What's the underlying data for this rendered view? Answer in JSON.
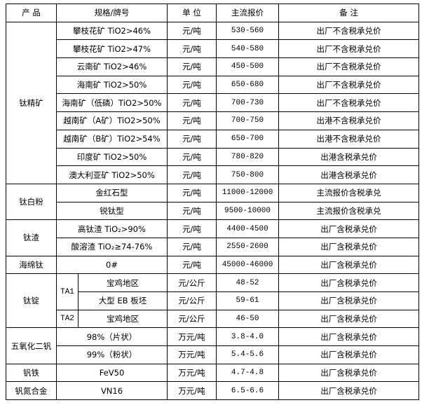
{
  "header": {
    "product": "产  品",
    "spec": "规格/牌号",
    "unit": "单 位",
    "price": "主流报价",
    "note": "备  注"
  },
  "groups": [
    {
      "product": "钛精矿",
      "rows": [
        {
          "spec": "攀枝花矿 TiO2>46%",
          "unit": "元/吨",
          "price": "530-560",
          "note": "出厂不含税承兑价"
        },
        {
          "spec": "攀枝花矿 TiO2>47%",
          "unit": "元/吨",
          "price": "540-580",
          "note": "出厂不含税承兑价"
        },
        {
          "spec": "云南矿 TiO2>46%",
          "unit": "元/吨",
          "price": "450-500",
          "note": "出厂不含税承兑价"
        },
        {
          "spec": "海南矿 TiO2>50%",
          "unit": "元/吨",
          "price": "650-680",
          "note": "出厂不含税承兑价"
        },
        {
          "spec": "海南矿（低磷）TiO2>50%",
          "unit": "元/吨",
          "price": "700-730",
          "note": "出厂不含税承兑价"
        },
        {
          "spec": "越南矿（A矿）TiO2>50%",
          "unit": "元/吨",
          "price": "700-750",
          "note": "出港不含税承兑价"
        },
        {
          "spec": "越南矿（B矿）TiO2>54%",
          "unit": "元/吨",
          "price": "650-700",
          "note": "出港不含税承兑价"
        },
        {
          "spec": "印度矿 TiO2>50%",
          "unit": "元/吨",
          "price": "780-820",
          "note": "出港含税承兑价"
        },
        {
          "spec": "澳大利亚矿 TiO2>50%",
          "unit": "元/吨",
          "price": "750-800",
          "note": "出港含税承兑价"
        }
      ]
    },
    {
      "product": "钛白粉",
      "rows": [
        {
          "spec": "金红石型",
          "unit": "元/吨",
          "price": "11000-12000",
          "note": "主流报价含税承兑"
        },
        {
          "spec": "锐钛型",
          "unit": "元/吨",
          "price": "9500-10000",
          "note": "主流报价含税承兑"
        }
      ]
    },
    {
      "product": "钛渣",
      "rows": [
        {
          "spec": "高钛渣 TiO₂>90%",
          "unit": "元/吨",
          "price": "4400-4500",
          "note": "出厂含税承兑价"
        },
        {
          "spec": "酸溶渣 TiO₂≥74-76%",
          "unit": "元/吨",
          "price": "2550-2600",
          "note": "出厂含税承兑价"
        }
      ]
    },
    {
      "product": "海绵钛",
      "rows": [
        {
          "spec": "0#",
          "unit": "元/吨",
          "price": "45000-46000",
          "note": "出厂含税承兑价"
        }
      ]
    },
    {
      "product": "钛锭",
      "rows": [
        {
          "grade": "TA1",
          "grade_span": 2,
          "spec": "宝鸡地区",
          "unit": "元/公斤",
          "price": "48-52",
          "note": "出厂含税承兑价"
        },
        {
          "spec": "大型 EB 板坯",
          "unit": "元/公斤",
          "price": "59-61",
          "note": "出厂含税承兑价"
        },
        {
          "grade": "TA2",
          "grade_span": 1,
          "spec": "宝鸡地区",
          "unit": "元/公斤",
          "price": "46-50",
          "note": "出厂含税承兑价"
        }
      ]
    },
    {
      "product": "五氧化二钒",
      "rows": [
        {
          "spec": "98%（片状）",
          "unit": "万元/吨",
          "price": "3.8-4.0",
          "note": "出厂含税承兑价"
        },
        {
          "spec": "99%（粉状）",
          "unit": "万元/吨",
          "price": "5.4-5.6",
          "note": "出厂含税承兑价"
        }
      ]
    },
    {
      "product": "钒铁",
      "rows": [
        {
          "spec": "FeV50",
          "unit": "万元/吨",
          "price": "4.7-4.8",
          "note": "出厂含税承兑价"
        }
      ]
    },
    {
      "product": "钒氮合金",
      "rows": [
        {
          "spec": "VN16",
          "unit": "万元/吨",
          "price": "6.5-6.6",
          "note": "出厂含税承兑价"
        }
      ]
    }
  ]
}
